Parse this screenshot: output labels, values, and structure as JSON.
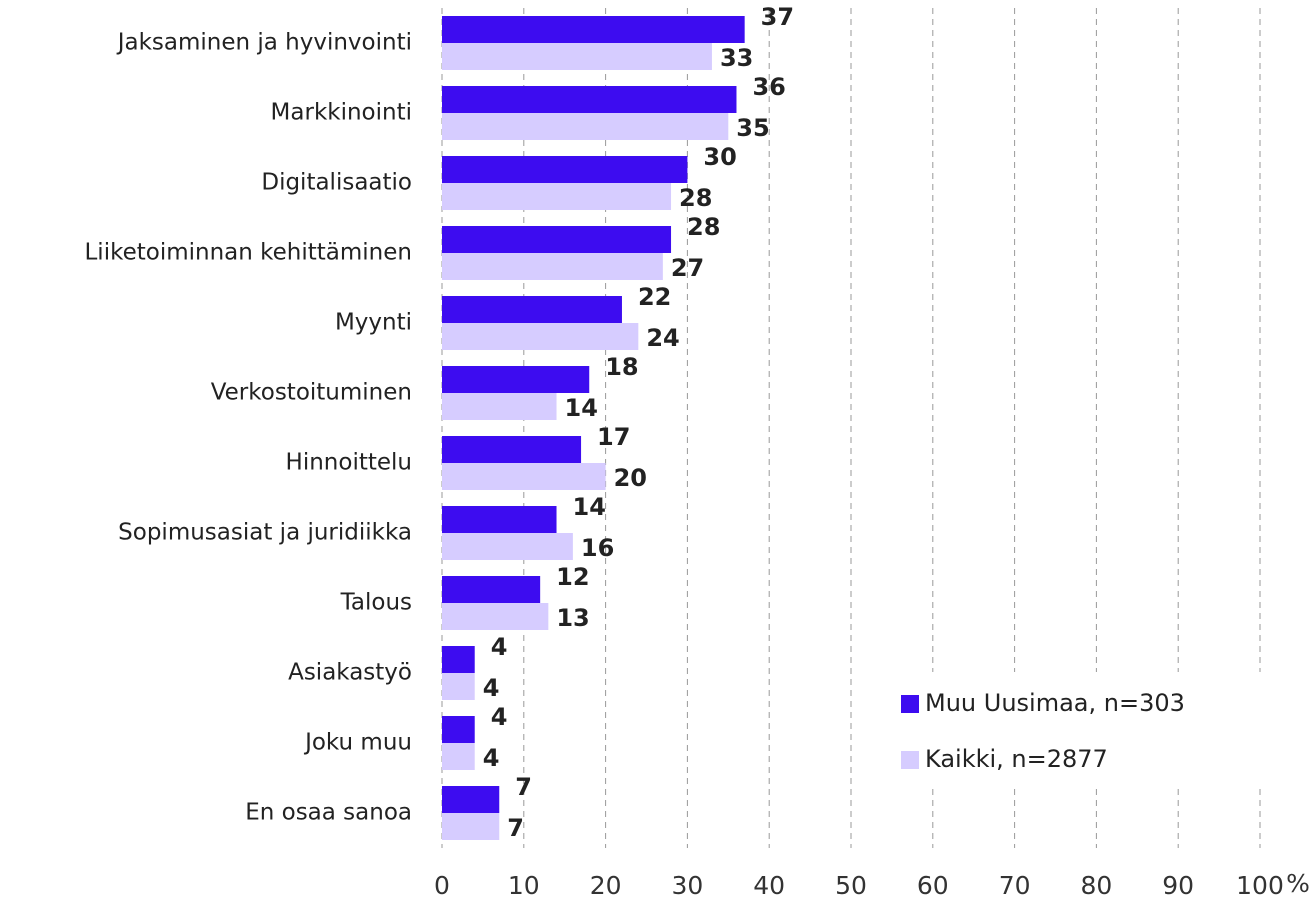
{
  "chart_data": {
    "type": "bar",
    "orientation": "horizontal",
    "categories": [
      "Jaksaminen ja hyvinvointi",
      "Markkinointi",
      "Digitalisaatio",
      "Liiketoiminnan kehittäminen",
      "Myynti",
      "Verkostoituminen",
      "Hinnoittelu",
      "Sopimusasiat ja juridiikka",
      "Talous",
      "Asiakastyö",
      "Joku muu",
      "En osaa sanoa"
    ],
    "series": [
      {
        "name": "Muu Uusimaa, n=303",
        "color": "#3d0cf0",
        "values": [
          37,
          36,
          30,
          28,
          22,
          18,
          17,
          14,
          12,
          4,
          4,
          7
        ]
      },
      {
        "name": "Kaikki, n=2877",
        "color": "#d6ccff",
        "values": [
          33,
          35,
          28,
          27,
          24,
          14,
          20,
          16,
          13,
          4,
          4,
          7
        ]
      }
    ],
    "x_label": "%",
    "xlim": [
      0,
      100
    ],
    "xticks": [
      0,
      10,
      20,
      30,
      40,
      50,
      60,
      70,
      80,
      90,
      100
    ],
    "grid": true,
    "legend": "lower right"
  }
}
